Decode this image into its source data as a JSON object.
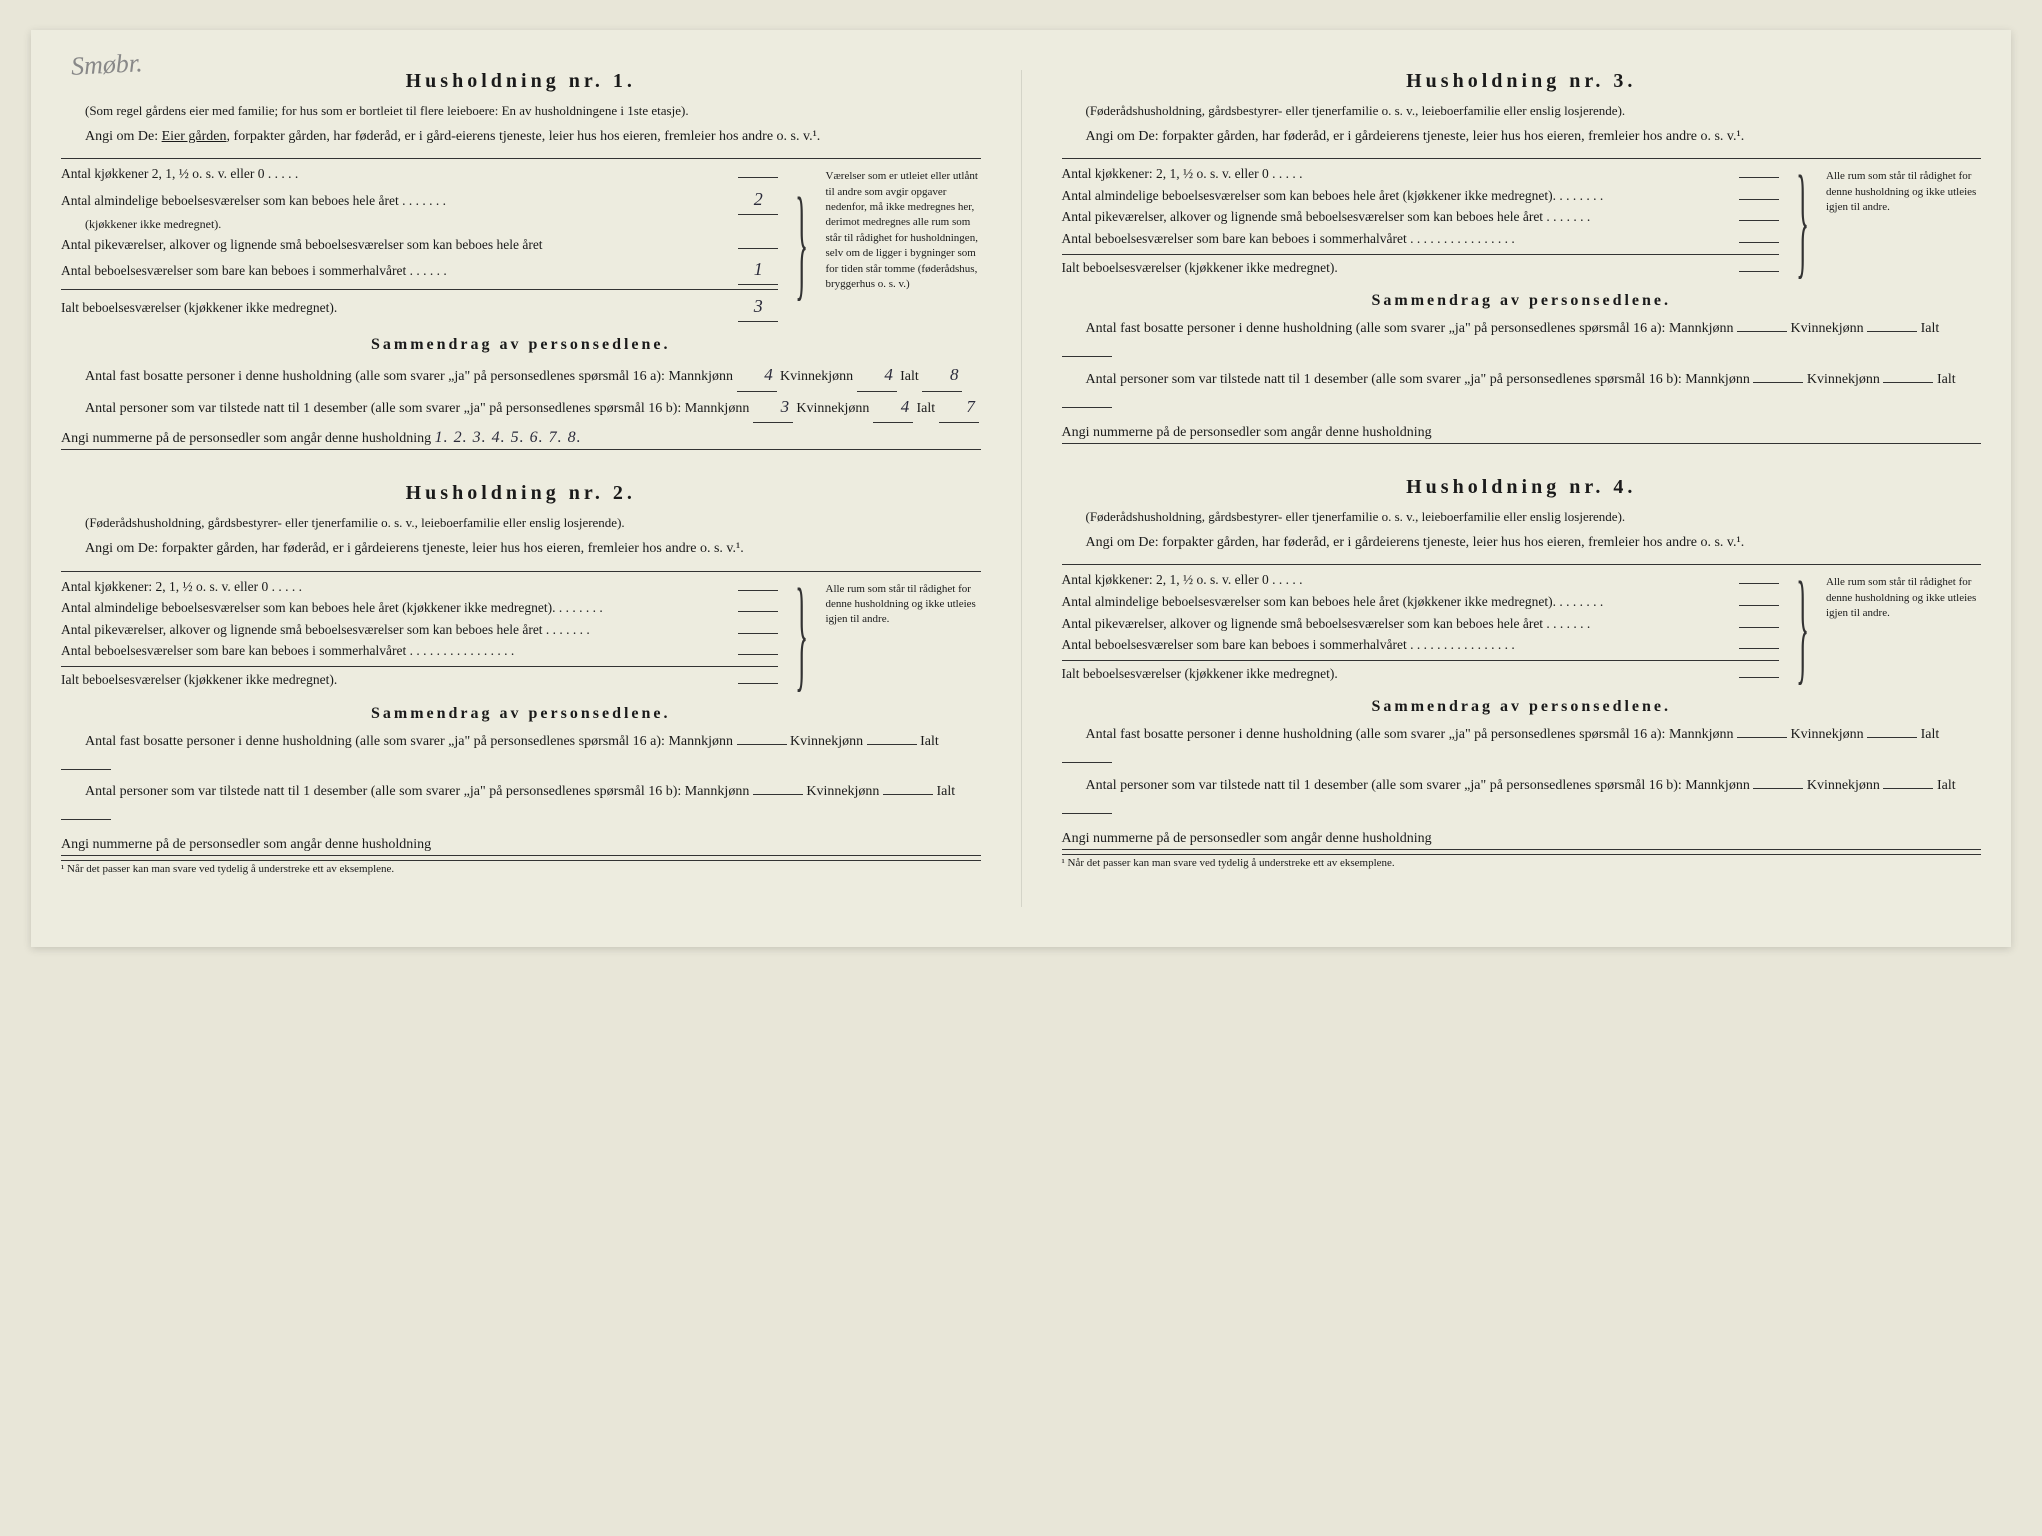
{
  "handwritten_note": "Smøbr.",
  "households": [
    {
      "title": "Husholdning nr. 1.",
      "intro1": "(Som regel gårdens eier med familie; for hus som er bortleiet til flere leieboere: En av husholdningene i 1ste etasje).",
      "angi_prefix": "Angi om De:",
      "angi_answer": "Eier gården",
      "angi_rest": ", forpakter gården, har føderåd, er i gård-eierens tjeneste, leier hus hos eieren, fremleier hos andre o. s. v.¹.",
      "rooms": {
        "kjokkener_label": "Antal kjøkkener 2, 1, ½ o. s. v. eller 0 . . . . .",
        "kjokkener_val": "",
        "almindelige_label": "Antal almindelige beboelsesværelser som kan beboes hele året . . . . . . .",
        "almindelige_sub": "(kjøkkener ikke medregnet).",
        "almindelige_val": "2",
        "pike_label": "Antal pikeværelser, alkover og lignende små beboelsesværelser som kan beboes hele året",
        "pike_val": "",
        "sommer_label": "Antal beboelsesværelser som bare kan beboes i sommerhalvåret . . . . . .",
        "sommer_val": "1",
        "ialt_label": "Ialt beboelsesværelser (kjøkkener ikke medregnet).",
        "ialt_val": "3"
      },
      "side_note": "Værelser som er utleiet eller utlånt til andre som avgir opgaver nedenfor, må ikke medregnes her, derimot medregnes alle rum som står til rådighet for husholdningen, selv om de ligger i bygninger som for tiden står tomme (føderådshus, bryggerhus o. s. v.)",
      "summary_title": "Sammendrag av personsedlene.",
      "sum16a_prefix": "Antal fast bosatte personer i denne husholdning (alle som svarer „ja\" på personsedlenes spørsmål 16 a): Mannkjønn",
      "sum16a_m": "4",
      "sum16a_mid": "Kvinnekjønn",
      "sum16a_k": "4",
      "sum16a_ialt_lbl": "Ialt",
      "sum16a_ialt": "8",
      "sum16b_prefix": "Antal personer som var tilstede natt til 1 desember (alle som svarer „ja\" på personsedlenes spørsmål 16 b): Mannkjønn",
      "sum16b_m": "3",
      "sum16b_mid": "Kvinnekjønn",
      "sum16b_k": "4",
      "sum16b_ialt_lbl": "Ialt",
      "sum16b_ialt": "7",
      "numbers_label": "Angi nummerne på de personsedler som angår denne husholdning",
      "numbers_val": "1. 2. 3. 4. 5. 6. 7. 8."
    },
    {
      "title": "Husholdning nr. 2.",
      "intro1": "(Føderådshusholdning, gårdsbestyrer- eller tjenerfamilie o. s. v., leieboerfamilie eller enslig losjerende).",
      "angi_prefix": "Angi om De:",
      "angi_rest": "forpakter gården, har føderåd, er i gårdeierens tjeneste, leier hus hos eieren, fremleier hos andre o. s. v.¹.",
      "rooms": {
        "kjokkener_label": "Antal kjøkkener: 2, 1, ½ o. s. v. eller 0 . . . . .",
        "kjokkener_val": "",
        "almindelige_label": "Antal almindelige beboelsesværelser som kan beboes hele året (kjøkkener ikke medregnet). . . . . . . .",
        "almindelige_val": "",
        "pike_label": "Antal pikeværelser, alkover og lignende små beboelsesværelser som kan beboes hele året . . . . . . .",
        "pike_val": "",
        "sommer_label": "Antal beboelsesværelser som bare kan beboes i sommerhalvåret . . . . . . . . . . . . . . . .",
        "sommer_val": "",
        "ialt_label": "Ialt beboelsesværelser (kjøkkener ikke medregnet).",
        "ialt_val": ""
      },
      "side_note": "Alle rum som står til rådighet for denne husholdning og ikke utleies igjen til andre.",
      "summary_title": "Sammendrag av personsedlene.",
      "sum16a_prefix": "Antal fast bosatte personer i denne husholdning (alle som svarer „ja\" på personsedlenes spørsmål 16 a): Mannkjønn",
      "sum16a_m": "",
      "sum16a_mid": "Kvinnekjønn",
      "sum16a_k": "",
      "sum16a_ialt_lbl": "Ialt",
      "sum16a_ialt": "",
      "sum16b_prefix": "Antal personer som var tilstede natt til 1 desember (alle som svarer „ja\" på personsedlenes spørsmål 16 b): Mannkjønn",
      "sum16b_m": "",
      "sum16b_mid": "Kvinnekjønn",
      "sum16b_k": "",
      "sum16b_ialt_lbl": "Ialt",
      "sum16b_ialt": "",
      "numbers_label": "Angi nummerne på de personsedler som angår denne husholdning",
      "numbers_val": ""
    },
    {
      "title": "Husholdning nr. 3.",
      "intro1": "(Føderådshusholdning, gårdsbestyrer- eller tjenerfamilie o. s. v., leieboerfamilie eller enslig losjerende).",
      "angi_prefix": "Angi om De:",
      "angi_rest": "forpakter gården, har føderåd, er i gårdeierens tjeneste, leier hus hos eieren, fremleier hos andre o. s. v.¹.",
      "rooms": {
        "kjokkener_label": "Antal kjøkkener: 2, 1, ½ o. s. v. eller 0 . . . . .",
        "kjokkener_val": "",
        "almindelige_label": "Antal almindelige beboelsesværelser som kan beboes hele året (kjøkkener ikke medregnet). . . . . . . .",
        "almindelige_val": "",
        "pike_label": "Antal pikeværelser, alkover og lignende små beboelsesværelser som kan beboes hele året . . . . . . .",
        "pike_val": "",
        "sommer_label": "Antal beboelsesværelser som bare kan beboes i sommerhalvåret . . . . . . . . . . . . . . . .",
        "sommer_val": "",
        "ialt_label": "Ialt beboelsesværelser (kjøkkener ikke medregnet).",
        "ialt_val": ""
      },
      "side_note": "Alle rum som står til rådighet for denne husholdning og ikke utleies igjen til andre.",
      "summary_title": "Sammendrag av personsedlene.",
      "sum16a_prefix": "Antal fast bosatte personer i denne husholdning (alle som svarer „ja\" på personsedlenes spørsmål 16 a): Mannkjønn",
      "sum16a_m": "",
      "sum16a_mid": "Kvinnekjønn",
      "sum16a_k": "",
      "sum16a_ialt_lbl": "Ialt",
      "sum16a_ialt": "",
      "sum16b_prefix": "Antal personer som var tilstede natt til 1 desember (alle som svarer „ja\" på personsedlenes spørsmål 16 b): Mannkjønn",
      "sum16b_m": "",
      "sum16b_mid": "Kvinnekjønn",
      "sum16b_k": "",
      "sum16b_ialt_lbl": "Ialt",
      "sum16b_ialt": "",
      "numbers_label": "Angi nummerne på de personsedler som angår denne husholdning",
      "numbers_val": ""
    },
    {
      "title": "Husholdning nr. 4.",
      "intro1": "(Føderådshusholdning, gårdsbestyrer- eller tjenerfamilie o. s. v., leieboerfamilie eller enslig losjerende).",
      "angi_prefix": "Angi om De:",
      "angi_rest": "forpakter gården, har føderåd, er i gårdeierens tjeneste, leier hus hos eieren, fremleier hos andre o. s. v.¹.",
      "rooms": {
        "kjokkener_label": "Antal kjøkkener: 2, 1, ½ o. s. v. eller 0 . . . . .",
        "kjokkener_val": "",
        "almindelige_label": "Antal almindelige beboelsesværelser som kan beboes hele året (kjøkkener ikke medregnet). . . . . . . .",
        "almindelige_val": "",
        "pike_label": "Antal pikeværelser, alkover og lignende små beboelsesværelser som kan beboes hele året . . . . . . .",
        "pike_val": "",
        "sommer_label": "Antal beboelsesværelser som bare kan beboes i sommerhalvåret . . . . . . . . . . . . . . . .",
        "sommer_val": "",
        "ialt_label": "Ialt beboelsesværelser (kjøkkener ikke medregnet).",
        "ialt_val": ""
      },
      "side_note": "Alle rum som står til rådighet for denne husholdning og ikke utleies igjen til andre.",
      "summary_title": "Sammendrag av personsedlene.",
      "sum16a_prefix": "Antal fast bosatte personer i denne husholdning (alle som svarer „ja\" på personsedlenes spørsmål 16 a): Mannkjønn",
      "sum16a_m": "",
      "sum16a_mid": "Kvinnekjønn",
      "sum16a_k": "",
      "sum16a_ialt_lbl": "Ialt",
      "sum16a_ialt": "",
      "sum16b_prefix": "Antal personer som var tilstede natt til 1 desember (alle som svarer „ja\" på personsedlenes spørsmål 16 b): Mannkjønn",
      "sum16b_m": "",
      "sum16b_mid": "Kvinnekjønn",
      "sum16b_k": "",
      "sum16b_ialt_lbl": "Ialt",
      "sum16b_ialt": "",
      "numbers_label": "Angi nummerne på de personsedler som angår denne husholdning",
      "numbers_val": ""
    }
  ],
  "footnote": "¹ Når det passer kan man svare ved tydelig å understreke ett av eksemplene.",
  "colors": {
    "paper": "#edecdf",
    "bg": "#e8e6d8",
    "text": "#1a1a1a",
    "handwriting": "#2a2a3a",
    "pencil": "#888888"
  },
  "typography": {
    "body_font": "Georgia serif",
    "title_size_pt": 16,
    "body_size_pt": 11,
    "handwriting_font": "cursive"
  }
}
